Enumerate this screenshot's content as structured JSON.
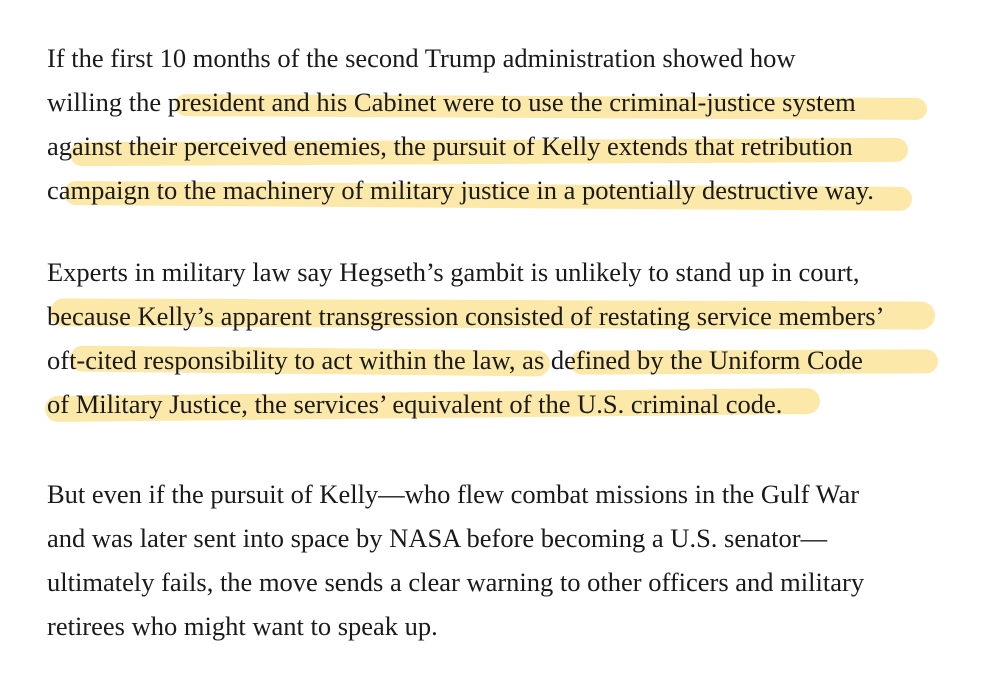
{
  "highlight_color": "#fbe49a",
  "paragraphs": [
    {
      "lines": [
        "If the first 10 months of the second Trump administration showed how",
        "willing the president and his Cabinet were to use the criminal-justice system",
        "against their perceived enemies, the pursuit of Kelly extends that retribution",
        "campaign to the machinery of military justice in a potentially destructive way."
      ]
    },
    {
      "lines": [
        "Experts in military law say Hegseth’s gambit is unlikely to stand up in court,",
        "because Kelly’s apparent transgression consisted of restating service members’",
        "oft-cited responsibility to act within the law, as defined by the Uniform Code",
        "of Military Justice, the services’ equivalent of the U.S. criminal code."
      ]
    },
    {
      "lines": [
        "But even if the pursuit of Kelly—who flew combat missions in the Gulf War",
        "and was later sent into space by NASA before becoming a U.S. senator—",
        "ultimately fails, the move sends a clear warning to other officers and military",
        "retirees who might want to speak up."
      ]
    }
  ]
}
